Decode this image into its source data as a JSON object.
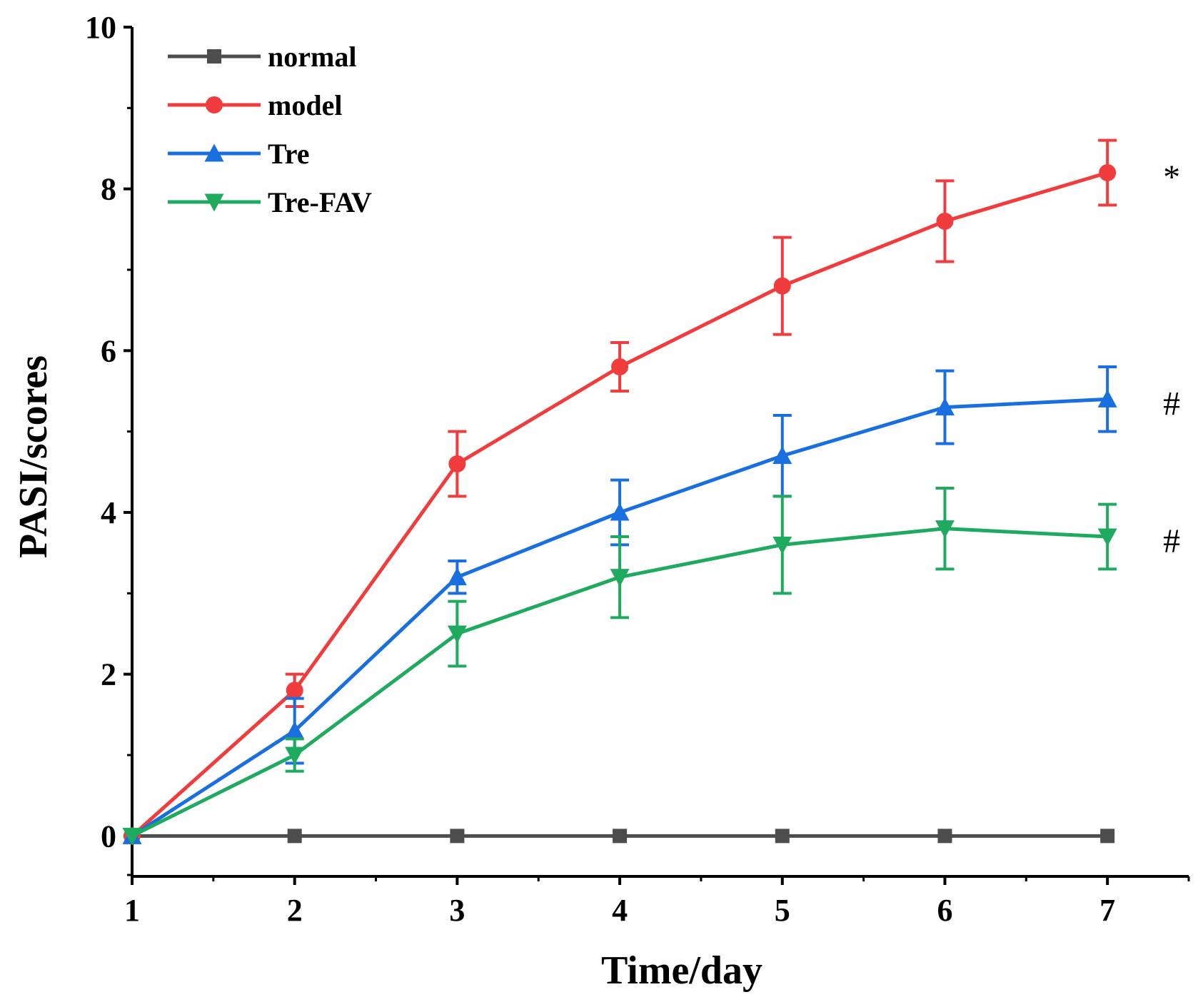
{
  "chart_data": {
    "type": "line",
    "title": "",
    "xlabel": "Time/day",
    "ylabel": "PASI/scores",
    "xlim": [
      1,
      7.5
    ],
    "ylim": [
      -0.5,
      10
    ],
    "x_ticks": [
      1,
      2,
      3,
      4,
      5,
      6,
      7
    ],
    "x_tick_labels": [
      "1",
      "2",
      "3",
      "4",
      "5",
      "6",
      "7"
    ],
    "y_ticks": [
      0,
      2,
      4,
      6,
      8,
      10
    ],
    "y_tick_labels": [
      "0",
      "2",
      "4",
      "6",
      "8",
      "10"
    ],
    "x": [
      1,
      2,
      3,
      4,
      5,
      6,
      7
    ],
    "legend_position": "top-left",
    "series": [
      {
        "name": "normal",
        "color": "#4d4d4d",
        "marker": "square",
        "values": [
          0,
          0,
          0,
          0,
          0,
          0,
          0
        ],
        "errors": [
          0,
          0,
          0,
          0,
          0,
          0,
          0
        ]
      },
      {
        "name": "model",
        "color": "#f03c3c",
        "marker": "circle",
        "values": [
          0,
          1.8,
          4.6,
          5.8,
          6.8,
          7.6,
          8.2
        ],
        "errors": [
          0,
          0.2,
          0.4,
          0.3,
          0.6,
          0.5,
          0.4
        ]
      },
      {
        "name": "Tre",
        "color": "#1a6fe0",
        "marker": "triangle-up",
        "values": [
          0,
          1.3,
          3.2,
          4.0,
          4.7,
          5.3,
          5.4
        ],
        "errors": [
          0,
          0.4,
          0.2,
          0.4,
          0.5,
          0.45,
          0.4
        ]
      },
      {
        "name": "Tre-FAV",
        "color": "#1faa5f",
        "marker": "triangle-down",
        "values": [
          0,
          1.0,
          2.5,
          3.2,
          3.6,
          3.8,
          3.7
        ],
        "errors": [
          0,
          0.2,
          0.4,
          0.5,
          0.6,
          0.5,
          0.4
        ]
      }
    ],
    "annotations": [
      {
        "text": "*",
        "series": "model",
        "x": 7,
        "y": 8.2
      },
      {
        "text": "#",
        "series": "Tre",
        "x": 7,
        "y": 5.4
      },
      {
        "text": "#",
        "series": "Tre-FAV",
        "x": 7,
        "y": 3.7
      }
    ]
  }
}
